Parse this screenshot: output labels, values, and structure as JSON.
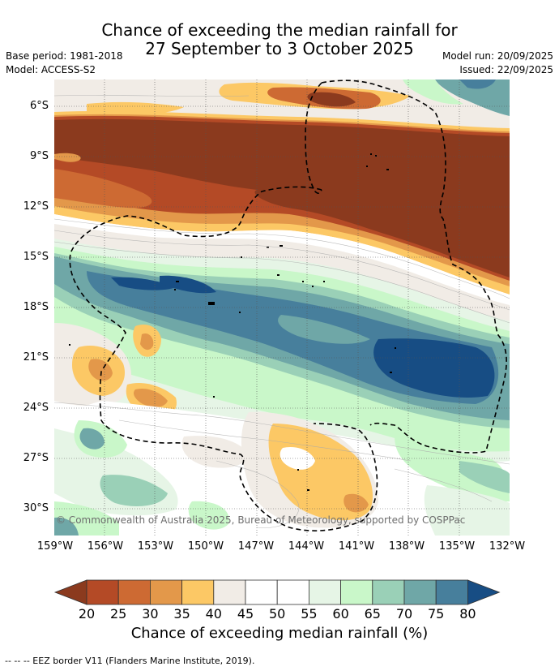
{
  "title": {
    "line1": "Chance of exceeding the median rainfall for",
    "line2": "27 September to 3 October 2025"
  },
  "meta": {
    "base_period": "Base period: 1981-2018",
    "model": "Model: ACCESS-S2",
    "model_run": "Model run: 20/09/2025",
    "issued": "Issued: 22/09/2025"
  },
  "map": {
    "lat_labels": [
      "6°S",
      "9°S",
      "12°S",
      "15°S",
      "18°S",
      "21°S",
      "24°S",
      "27°S",
      "30°S"
    ],
    "lon_labels": [
      "159°W",
      "156°W",
      "153°W",
      "150°W",
      "147°W",
      "144°W",
      "141°W",
      "138°W",
      "135°W",
      "132°W"
    ],
    "copyright": "© Commonwealth of Australia 2025, Bureau of Meteorology, supported by COSPPac"
  },
  "colorbar": {
    "ticks": [
      "20",
      "25",
      "30",
      "35",
      "40",
      "45",
      "50",
      "55",
      "60",
      "65",
      "70",
      "75",
      "80"
    ],
    "colors": [
      "#8b3a1e",
      "#b44a26",
      "#cd6a33",
      "#e3984a",
      "#fcc865",
      "#f1ece6",
      "#ffffff",
      "#ffffff",
      "#e6f5e6",
      "#c9f7c9",
      "#9ad0b7",
      "#6fa7a7",
      "#477f9c",
      "#174d84"
    ],
    "label": "Chance of exceeding median rainfall (%)"
  },
  "footer": "--  --  -- EEZ border V11 (Flanders Marine Institute, 2019)."
}
